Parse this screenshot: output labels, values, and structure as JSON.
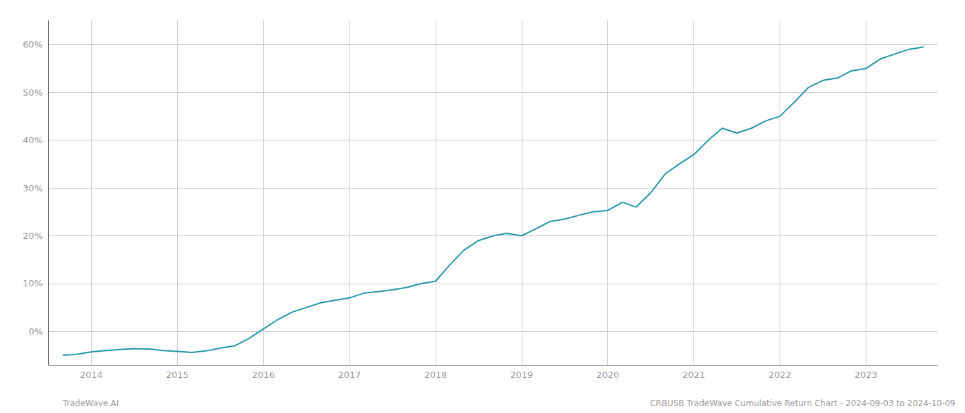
{
  "chart_data": {
    "type": "line",
    "color": "#2196a8",
    "grid": true,
    "annotations": [
      "TradeWave.AI",
      "CRBUSB TradeWave Cumulative Return Chart - 2024-09-03 to 2024-10-09"
    ],
    "x": [
      2013.67,
      2013.83,
      2014.0,
      2014.17,
      2014.33,
      2014.5,
      2014.67,
      2014.83,
      2015.0,
      2015.17,
      2015.33,
      2015.5,
      2015.67,
      2015.83,
      2016.0,
      2016.17,
      2016.33,
      2016.5,
      2016.67,
      2016.83,
      2017.0,
      2017.17,
      2017.33,
      2017.5,
      2017.67,
      2017.83,
      2018.0,
      2018.17,
      2018.33,
      2018.5,
      2018.67,
      2018.83,
      2019.0,
      2019.17,
      2019.33,
      2019.5,
      2019.67,
      2019.83,
      2020.0,
      2020.17,
      2020.33,
      2020.5,
      2020.67,
      2020.83,
      2021.0,
      2021.17,
      2021.33,
      2021.5,
      2021.67,
      2021.83,
      2022.0,
      2022.17,
      2022.33,
      2022.5,
      2022.67,
      2022.83,
      2023.0,
      2023.17,
      2023.33,
      2023.5,
      2023.67
    ],
    "values": [
      -5.0,
      -4.8,
      -4.3,
      -4.0,
      -3.8,
      -3.6,
      -3.7,
      -4.0,
      -4.2,
      -4.4,
      -4.1,
      -3.5,
      -3.0,
      -1.5,
      0.5,
      2.5,
      4.0,
      5.0,
      6.0,
      6.5,
      7.0,
      8.0,
      8.3,
      8.7,
      9.2,
      10.0,
      10.5,
      14.0,
      17.0,
      19.0,
      20.0,
      20.5,
      20.0,
      21.5,
      23.0,
      23.5,
      24.3,
      25.0,
      25.3,
      27.0,
      26.0,
      29.0,
      33.0,
      35.0,
      37.0,
      40.0,
      42.5,
      41.5,
      42.5,
      44.0,
      45.0,
      48.0,
      51.0,
      52.5,
      53.0,
      54.5,
      55.0,
      57.0,
      58.0,
      59.0,
      59.5
    ],
    "xlim": [
      2013.5,
      2023.83
    ],
    "xticks": [
      2014,
      2015,
      2016,
      2017,
      2018,
      2019,
      2020,
      2021,
      2022,
      2023
    ],
    "ylim": [
      -7,
      65
    ],
    "yticks": [
      {
        "value": 0,
        "label": "0%"
      },
      {
        "value": 10,
        "label": "10%"
      },
      {
        "value": 20,
        "label": "20%"
      },
      {
        "value": 30,
        "label": "30%"
      },
      {
        "value": 40,
        "label": "40%"
      },
      {
        "value": 50,
        "label": "50%"
      },
      {
        "value": 60,
        "label": "60%"
      }
    ]
  }
}
